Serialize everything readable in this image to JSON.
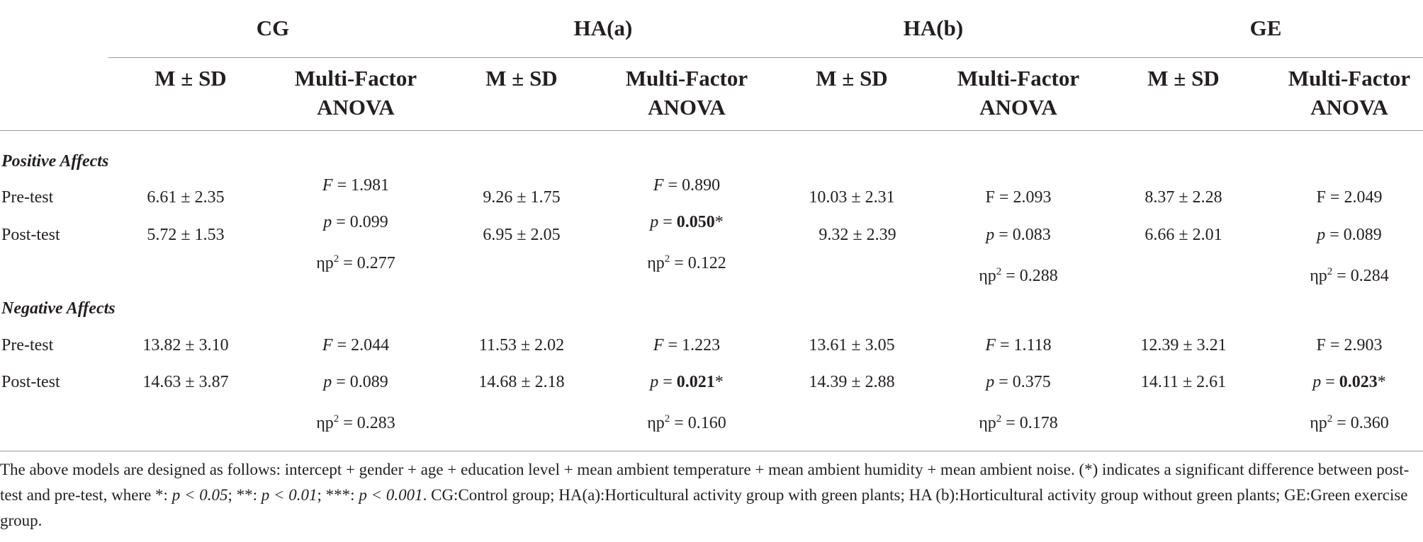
{
  "groups": [
    "CG",
    "HA(a)",
    "HA(b)",
    "GE"
  ],
  "subheaders": {
    "msd": "M ± SD",
    "anova_line1": "Multi-Factor",
    "anova_line2": "ANOVA"
  },
  "sections": [
    {
      "title": "Positive Affects",
      "rows": [
        "Pre-test",
        "Post-test"
      ],
      "groups": [
        {
          "pre": "6.61 ± 2.35",
          "post": "5.72 ± 1.53",
          "F_prefix": "F",
          "F": "1.981",
          "p": "0.099",
          "p_sig": false,
          "eta": "0.277"
        },
        {
          "pre": "9.26 ± 1.75",
          "post": "6.95 ± 2.05",
          "F_prefix": "F",
          "F": "0.890",
          "p": "0.050",
          "p_sig": true,
          "eta": "0.122"
        },
        {
          "pre": "10.03 ± 2.31",
          "post": "9.32 ± 2.39",
          "F_prefix": "F",
          "F": "2.093",
          "p": "0.083",
          "p_sig": false,
          "eta": "0.288"
        },
        {
          "pre": "8.37 ± 2.28",
          "post": "6.66 ± 2.01",
          "F_prefix": "F",
          "F": "2.049",
          "p": "0.089",
          "p_sig": false,
          "eta": "0.284"
        }
      ]
    },
    {
      "title": "Negative Affects",
      "rows": [
        "Pre-test",
        "Post-test"
      ],
      "groups": [
        {
          "pre": "13.82 ± 3.10",
          "post": "14.63 ± 3.87",
          "F_prefix": "F",
          "F": "2.044",
          "p": "0.089",
          "p_sig": false,
          "eta": "0.283"
        },
        {
          "pre": "11.53 ± 2.02",
          "post": "14.68 ± 2.18",
          "F_prefix": "F",
          "F": "1.223",
          "p": "0.021",
          "p_sig": true,
          "eta": "0.160"
        },
        {
          "pre": "13.61 ± 3.05",
          "post": "14.39 ± 2.88",
          "F_prefix": "F",
          "F": "1.118",
          "p": "0.375",
          "p_sig": false,
          "eta": "0.178"
        },
        {
          "pre": "12.39 ± 3.21",
          "post": "14.11 ± 2.61",
          "F_prefix": "F",
          "F": "2.903",
          "p": "0.023",
          "p_sig": true,
          "eta": "0.360"
        }
      ]
    }
  ],
  "stat_labels": {
    "p": "p",
    "eta": "ηp",
    "eta_sup": "2",
    "eq": " = ",
    "sig_mark": "*"
  },
  "footnote": {
    "part1": "The above models are designed as follows: intercept + gender + age + education level + mean ambient temperature + mean ambient humidity + mean ambient noise. (*) indicates a significant difference between post-test and pre-test, where *: ",
    "s1": "p < 0.05",
    "sep1": "; **: ",
    "s2": "p < 0.01",
    "sep2": "; ***: ",
    "s3": "p < 0.001",
    "part2": ". CG:Control group; HA(a):Horticultural activity group with green plants; HA (b):Horticultural activity group without green plants; GE:Green exercise group."
  }
}
